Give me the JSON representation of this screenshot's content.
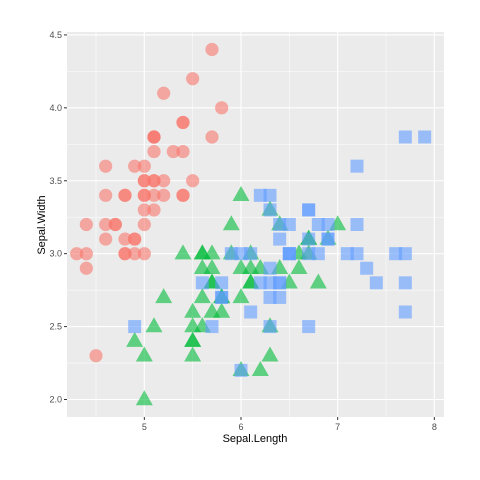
{
  "chart_data": {
    "type": "scatter",
    "xlabel": "Sepal.Length",
    "ylabel": "Sepal.Width",
    "xlim": [
      4.2,
      8.1
    ],
    "ylim": [
      1.88,
      4.52
    ],
    "x_ticks": [
      5,
      6,
      7,
      8
    ],
    "y_ticks": [
      2.0,
      2.5,
      3.0,
      3.5,
      4.0,
      4.5
    ],
    "x_tick_labels": [
      "5",
      "6",
      "7",
      "8"
    ],
    "y_tick_labels": [
      "2.0",
      "2.5",
      "3.0",
      "3.5",
      "4.0",
      "4.5"
    ],
    "grid": true,
    "legend": "none",
    "panel_color": "#ebebeb",
    "grid_color": "#ffffff",
    "series": [
      {
        "marker": "circle",
        "color": "#f8766d",
        "points": [
          [
            5.1,
            3.5
          ],
          [
            4.9,
            3.0
          ],
          [
            4.7,
            3.2
          ],
          [
            4.6,
            3.1
          ],
          [
            5.0,
            3.6
          ],
          [
            5.4,
            3.9
          ],
          [
            4.6,
            3.4
          ],
          [
            5.0,
            3.4
          ],
          [
            4.4,
            2.9
          ],
          [
            4.9,
            3.1
          ],
          [
            5.4,
            3.7
          ],
          [
            4.8,
            3.4
          ],
          [
            4.8,
            3.0
          ],
          [
            4.3,
            3.0
          ],
          [
            5.8,
            4.0
          ],
          [
            5.7,
            4.4
          ],
          [
            5.4,
            3.9
          ],
          [
            5.1,
            3.5
          ],
          [
            5.7,
            3.8
          ],
          [
            5.1,
            3.8
          ],
          [
            5.4,
            3.4
          ],
          [
            5.1,
            3.7
          ],
          [
            4.6,
            3.6
          ],
          [
            5.1,
            3.3
          ],
          [
            4.8,
            3.4
          ],
          [
            5.0,
            3.0
          ],
          [
            5.0,
            3.4
          ],
          [
            5.2,
            3.5
          ],
          [
            5.2,
            3.4
          ],
          [
            4.7,
            3.2
          ],
          [
            4.8,
            3.1
          ],
          [
            5.4,
            3.4
          ],
          [
            5.2,
            4.1
          ],
          [
            5.5,
            4.2
          ],
          [
            4.9,
            3.1
          ],
          [
            5.0,
            3.2
          ],
          [
            5.5,
            3.5
          ],
          [
            4.9,
            3.6
          ],
          [
            4.4,
            3.0
          ],
          [
            5.1,
            3.4
          ],
          [
            5.0,
            3.5
          ],
          [
            4.5,
            2.3
          ],
          [
            4.4,
            3.2
          ],
          [
            5.0,
            3.5
          ],
          [
            5.1,
            3.8
          ],
          [
            4.8,
            3.0
          ],
          [
            5.1,
            3.8
          ],
          [
            4.6,
            3.2
          ],
          [
            5.3,
            3.7
          ],
          [
            5.0,
            3.3
          ]
        ]
      },
      {
        "marker": "triangle",
        "color": "#00ba38",
        "points": [
          [
            7.0,
            3.2
          ],
          [
            6.4,
            3.2
          ],
          [
            6.9,
            3.1
          ],
          [
            5.5,
            2.3
          ],
          [
            6.5,
            2.8
          ],
          [
            5.7,
            2.8
          ],
          [
            6.3,
            3.3
          ],
          [
            4.9,
            2.4
          ],
          [
            6.6,
            2.9
          ],
          [
            5.2,
            2.7
          ],
          [
            5.0,
            2.0
          ],
          [
            5.9,
            3.0
          ],
          [
            6.0,
            2.2
          ],
          [
            6.1,
            2.9
          ],
          [
            5.6,
            2.9
          ],
          [
            6.7,
            3.1
          ],
          [
            5.6,
            3.0
          ],
          [
            5.8,
            2.7
          ],
          [
            6.2,
            2.2
          ],
          [
            5.6,
            2.5
          ],
          [
            5.9,
            3.2
          ],
          [
            6.1,
            2.8
          ],
          [
            6.3,
            2.5
          ],
          [
            6.1,
            2.8
          ],
          [
            6.4,
            2.9
          ],
          [
            6.6,
            3.0
          ],
          [
            6.8,
            2.8
          ],
          [
            6.7,
            3.0
          ],
          [
            6.0,
            2.9
          ],
          [
            5.7,
            2.6
          ],
          [
            5.5,
            2.4
          ],
          [
            5.5,
            2.4
          ],
          [
            5.8,
            2.7
          ],
          [
            6.0,
            2.7
          ],
          [
            5.4,
            3.0
          ],
          [
            6.0,
            3.4
          ],
          [
            6.7,
            3.1
          ],
          [
            6.3,
            2.3
          ],
          [
            5.6,
            3.0
          ],
          [
            5.5,
            2.5
          ],
          [
            5.5,
            2.6
          ],
          [
            6.1,
            3.0
          ],
          [
            5.8,
            2.6
          ],
          [
            5.0,
            2.3
          ],
          [
            5.6,
            2.7
          ],
          [
            5.7,
            3.0
          ],
          [
            5.7,
            2.9
          ],
          [
            6.2,
            2.9
          ],
          [
            5.1,
            2.5
          ],
          [
            5.7,
            2.8
          ]
        ]
      },
      {
        "marker": "square",
        "color": "#619cff",
        "points": [
          [
            6.3,
            3.3
          ],
          [
            5.8,
            2.7
          ],
          [
            7.1,
            3.0
          ],
          [
            6.3,
            2.9
          ],
          [
            6.5,
            3.0
          ],
          [
            7.6,
            3.0
          ],
          [
            4.9,
            2.5
          ],
          [
            7.3,
            2.9
          ],
          [
            6.7,
            2.5
          ],
          [
            7.2,
            3.6
          ],
          [
            6.5,
            3.2
          ],
          [
            6.4,
            2.7
          ],
          [
            6.8,
            3.0
          ],
          [
            5.7,
            2.5
          ],
          [
            5.8,
            2.8
          ],
          [
            6.4,
            3.2
          ],
          [
            6.5,
            3.0
          ],
          [
            7.7,
            3.8
          ],
          [
            7.7,
            2.6
          ],
          [
            6.0,
            2.2
          ],
          [
            6.9,
            3.2
          ],
          [
            5.6,
            2.8
          ],
          [
            7.7,
            2.8
          ],
          [
            6.3,
            2.7
          ],
          [
            6.7,
            3.3
          ],
          [
            7.2,
            3.2
          ],
          [
            6.2,
            2.8
          ],
          [
            6.1,
            3.0
          ],
          [
            6.4,
            2.8
          ],
          [
            7.2,
            3.0
          ],
          [
            7.4,
            2.8
          ],
          [
            7.9,
            3.8
          ],
          [
            6.4,
            2.8
          ],
          [
            6.3,
            2.8
          ],
          [
            6.1,
            2.6
          ],
          [
            7.7,
            3.0
          ],
          [
            6.3,
            3.4
          ],
          [
            6.4,
            3.1
          ],
          [
            6.0,
            3.0
          ],
          [
            6.9,
            3.1
          ],
          [
            6.7,
            3.1
          ],
          [
            6.9,
            3.1
          ],
          [
            5.8,
            2.7
          ],
          [
            6.8,
            3.2
          ],
          [
            6.7,
            3.3
          ],
          [
            6.7,
            3.0
          ],
          [
            6.3,
            2.5
          ],
          [
            6.5,
            3.0
          ],
          [
            6.2,
            3.4
          ],
          [
            5.9,
            3.0
          ]
        ]
      }
    ]
  }
}
